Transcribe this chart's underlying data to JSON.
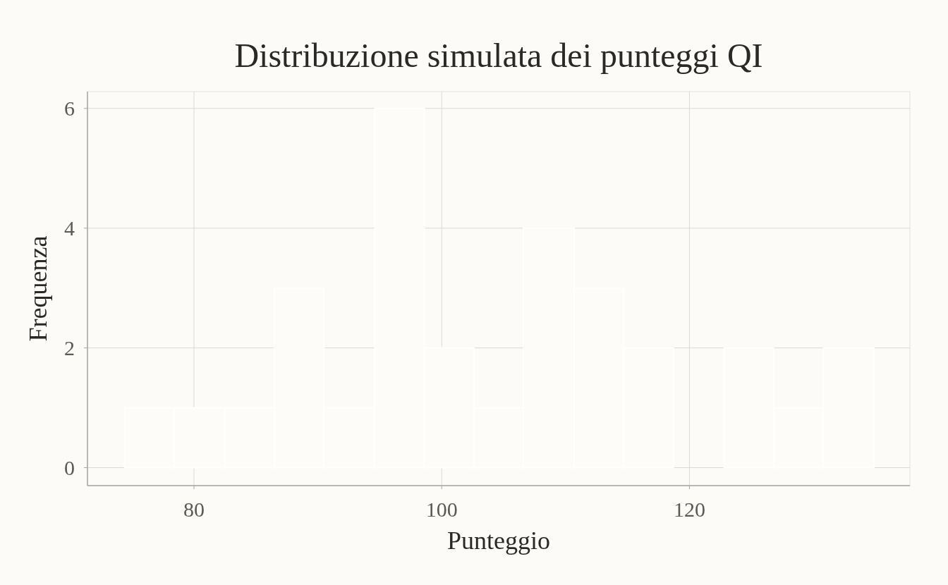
{
  "chart_data": {
    "type": "histogram",
    "title": "Distribuzione simulata dei punteggi QI",
    "xlabel": "Punteggio",
    "ylabel": "Frequenza",
    "bins": [
      74.4,
      78.4,
      82.5,
      86.5,
      90.5,
      94.6,
      98.6,
      102.6,
      106.6,
      110.7,
      114.7,
      118.7,
      122.8,
      126.8,
      130.8,
      134.9
    ],
    "values": [
      1,
      1,
      1,
      3,
      1,
      6,
      2,
      1,
      4,
      3,
      2,
      0,
      2,
      1,
      2
    ],
    "color": "#fdfcf9",
    "xlim": [
      71.4,
      137.8
    ],
    "xticks": [
      80,
      100,
      120
    ],
    "ylim": [
      -0.3,
      6.28
    ],
    "yticks": [
      0,
      2,
      4,
      6
    ],
    "grid": true
  }
}
